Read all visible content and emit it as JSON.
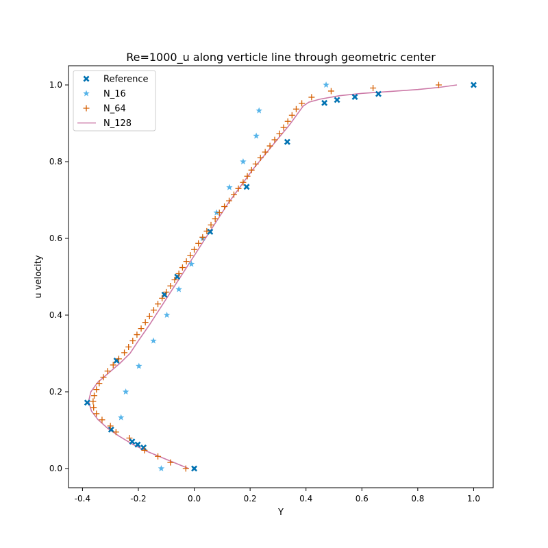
{
  "chart_data": {
    "type": "scatter",
    "title": "Re=1000_u along verticle line through geometric center",
    "xlabel": "Y",
    "ylabel": "u velocity",
    "xlim": [
      -0.45,
      1.07
    ],
    "ylim": [
      -0.05,
      1.05
    ],
    "xticks": [
      "-0.4",
      "-0.2",
      "0.0",
      "0.2",
      "0.4",
      "0.6",
      "0.8",
      "1.0"
    ],
    "yticks": [
      "0.0",
      "0.2",
      "0.4",
      "0.6",
      "0.8",
      "1.0"
    ],
    "grid": false,
    "legend_position": "top-left",
    "series": [
      {
        "name": "Reference",
        "marker": "x-filled",
        "color": "#0072b2",
        "points": [
          [
            0.0,
            0.0
          ],
          [
            -0.1814,
            0.0547
          ],
          [
            -0.2023,
            0.0625
          ],
          [
            -0.2222,
            0.0703
          ],
          [
            -0.2973,
            0.1016
          ],
          [
            -0.3829,
            0.1719
          ],
          [
            -0.2781,
            0.2813
          ],
          [
            -0.1065,
            0.4531
          ],
          [
            -0.0608,
            0.5
          ],
          [
            0.057,
            0.6172
          ],
          [
            0.1875,
            0.7344
          ],
          [
            0.333,
            0.8516
          ],
          [
            0.466,
            0.9531
          ],
          [
            0.5112,
            0.9609
          ],
          [
            0.5749,
            0.9688
          ],
          [
            0.6593,
            0.9766
          ],
          [
            1.0,
            1.0
          ]
        ]
      },
      {
        "name": "N_16",
        "marker": "star",
        "color": "#56b4e9",
        "points": [
          [
            -0.118,
            0.0
          ],
          [
            -0.262,
            0.133
          ],
          [
            -0.245,
            0.2
          ],
          [
            -0.198,
            0.267
          ],
          [
            -0.146,
            0.333
          ],
          [
            -0.098,
            0.4
          ],
          [
            -0.055,
            0.467
          ],
          [
            -0.01,
            0.533
          ],
          [
            0.03,
            0.6
          ],
          [
            0.08,
            0.667
          ],
          [
            0.126,
            0.733
          ],
          [
            0.175,
            0.8
          ],
          [
            0.222,
            0.867
          ],
          [
            0.232,
            0.933
          ],
          [
            0.472,
            1.0
          ]
        ]
      },
      {
        "name": "N_64",
        "marker": "plus",
        "color": "#d55e00",
        "points": [
          [
            -0.03,
            0.0
          ],
          [
            -0.085,
            0.0159
          ],
          [
            -0.13,
            0.0317
          ],
          [
            -0.178,
            0.0476
          ],
          [
            -0.232,
            0.0794
          ],
          [
            -0.28,
            0.0952
          ],
          [
            -0.3,
            0.111
          ],
          [
            -0.33,
            0.127
          ],
          [
            -0.35,
            0.143
          ],
          [
            -0.36,
            0.159
          ],
          [
            -0.362,
            0.175
          ],
          [
            -0.358,
            0.19
          ],
          [
            -0.35,
            0.206
          ],
          [
            -0.34,
            0.222
          ],
          [
            -0.325,
            0.238
          ],
          [
            -0.31,
            0.254
          ],
          [
            -0.29,
            0.27
          ],
          [
            -0.27,
            0.286
          ],
          [
            -0.25,
            0.302
          ],
          [
            -0.235,
            0.317
          ],
          [
            -0.22,
            0.333
          ],
          [
            -0.205,
            0.349
          ],
          [
            -0.19,
            0.365
          ],
          [
            -0.175,
            0.381
          ],
          [
            -0.16,
            0.397
          ],
          [
            -0.145,
            0.413
          ],
          [
            -0.13,
            0.429
          ],
          [
            -0.115,
            0.444
          ],
          [
            -0.1,
            0.46
          ],
          [
            -0.085,
            0.476
          ],
          [
            -0.07,
            0.492
          ],
          [
            -0.055,
            0.508
          ],
          [
            -0.042,
            0.524
          ],
          [
            -0.028,
            0.54
          ],
          [
            -0.014,
            0.556
          ],
          [
            0.0,
            0.571
          ],
          [
            0.015,
            0.587
          ],
          [
            0.03,
            0.603
          ],
          [
            0.045,
            0.619
          ],
          [
            0.06,
            0.635
          ],
          [
            0.075,
            0.651
          ],
          [
            0.09,
            0.667
          ],
          [
            0.108,
            0.683
          ],
          [
            0.125,
            0.698
          ],
          [
            0.142,
            0.714
          ],
          [
            0.158,
            0.73
          ],
          [
            0.175,
            0.746
          ],
          [
            0.19,
            0.762
          ],
          [
            0.205,
            0.778
          ],
          [
            0.22,
            0.794
          ],
          [
            0.237,
            0.81
          ],
          [
            0.254,
            0.825
          ],
          [
            0.271,
            0.841
          ],
          [
            0.288,
            0.857
          ],
          [
            0.305,
            0.873
          ],
          [
            0.32,
            0.889
          ],
          [
            0.335,
            0.905
          ],
          [
            0.35,
            0.921
          ],
          [
            0.365,
            0.937
          ],
          [
            0.385,
            0.952
          ],
          [
            0.42,
            0.968
          ],
          [
            0.49,
            0.984
          ],
          [
            0.64,
            0.992
          ],
          [
            0.875,
            1.0
          ]
        ]
      },
      {
        "name": "N_128",
        "marker": "line",
        "color": "#cc79a7",
        "points": [
          [
            -0.02,
            0.0
          ],
          [
            -0.07,
            0.015
          ],
          [
            -0.12,
            0.03
          ],
          [
            -0.17,
            0.045
          ],
          [
            -0.22,
            0.063
          ],
          [
            -0.27,
            0.085
          ],
          [
            -0.31,
            0.105
          ],
          [
            -0.345,
            0.128
          ],
          [
            -0.368,
            0.15
          ],
          [
            -0.378,
            0.175
          ],
          [
            -0.37,
            0.2
          ],
          [
            -0.345,
            0.225
          ],
          [
            -0.305,
            0.25
          ],
          [
            -0.265,
            0.275
          ],
          [
            -0.23,
            0.3
          ],
          [
            -0.2,
            0.333
          ],
          [
            -0.16,
            0.375
          ],
          [
            -0.12,
            0.42
          ],
          [
            -0.08,
            0.465
          ],
          [
            -0.04,
            0.51
          ],
          [
            0.0,
            0.555
          ],
          [
            0.04,
            0.6
          ],
          [
            0.08,
            0.645
          ],
          [
            0.12,
            0.69
          ],
          [
            0.165,
            0.735
          ],
          [
            0.21,
            0.78
          ],
          [
            0.255,
            0.82
          ],
          [
            0.3,
            0.86
          ],
          [
            0.34,
            0.895
          ],
          [
            0.36,
            0.915
          ],
          [
            0.375,
            0.93
          ],
          [
            0.39,
            0.945
          ],
          [
            0.41,
            0.955
          ],
          [
            0.45,
            0.963
          ],
          [
            0.52,
            0.972
          ],
          [
            0.6,
            0.978
          ],
          [
            0.7,
            0.983
          ],
          [
            0.8,
            0.988
          ],
          [
            0.88,
            0.994
          ],
          [
            0.94,
            1.0
          ]
        ]
      }
    ]
  }
}
